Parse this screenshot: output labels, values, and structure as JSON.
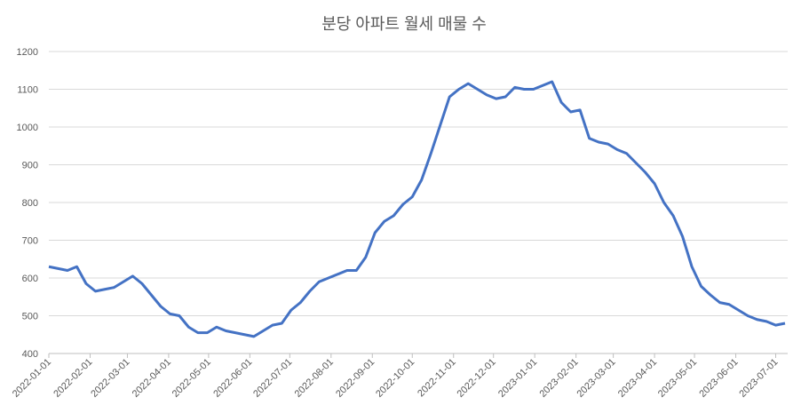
{
  "chart_data": {
    "type": "line",
    "title": "분당 아파트 월세 매물 수",
    "x": [
      "2022-01-01",
      "2022-01-08",
      "2022-01-15",
      "2022-01-22",
      "2022-01-29",
      "2022-02-05",
      "2022-02-12",
      "2022-02-19",
      "2022-02-26",
      "2022-03-05",
      "2022-03-12",
      "2022-03-19",
      "2022-03-26",
      "2022-04-02",
      "2022-04-09",
      "2022-04-16",
      "2022-04-23",
      "2022-04-30",
      "2022-05-07",
      "2022-05-14",
      "2022-05-21",
      "2022-05-28",
      "2022-06-04",
      "2022-06-11",
      "2022-06-18",
      "2022-06-25",
      "2022-07-02",
      "2022-07-09",
      "2022-07-16",
      "2022-07-23",
      "2022-07-30",
      "2022-08-06",
      "2022-08-13",
      "2022-08-20",
      "2022-08-27",
      "2022-09-03",
      "2022-09-10",
      "2022-09-17",
      "2022-09-24",
      "2022-10-01",
      "2022-10-08",
      "2022-10-15",
      "2022-10-22",
      "2022-10-29",
      "2022-11-05",
      "2022-11-12",
      "2022-11-19",
      "2022-11-26",
      "2022-12-03",
      "2022-12-10",
      "2022-12-17",
      "2022-12-24",
      "2022-12-31",
      "2023-01-07",
      "2023-01-14",
      "2023-01-21",
      "2023-01-28",
      "2023-02-04",
      "2023-02-11",
      "2023-02-18",
      "2023-02-25",
      "2023-03-04",
      "2023-03-11",
      "2023-03-18",
      "2023-03-25",
      "2023-04-01",
      "2023-04-08",
      "2023-04-15",
      "2023-04-22",
      "2023-04-29",
      "2023-05-06",
      "2023-05-13",
      "2023-05-20",
      "2023-05-27",
      "2023-06-03",
      "2023-06-10",
      "2023-06-17",
      "2023-06-24",
      "2023-07-01",
      "2023-07-08"
    ],
    "series": [
      {
        "color": "#4472c4",
        "values": [
          630,
          625,
          620,
          630,
          585,
          565,
          570,
          575,
          590,
          605,
          585,
          555,
          525,
          505,
          500,
          470,
          455,
          455,
          470,
          460,
          455,
          450,
          445,
          460,
          475,
          480,
          515,
          535,
          565,
          590,
          600,
          610,
          620,
          620,
          655,
          720,
          750,
          765,
          795,
          815,
          860,
          930,
          1005,
          1080,
          1100,
          1115,
          1100,
          1085,
          1075,
          1080,
          1105,
          1100,
          1100,
          1110,
          1120,
          1065,
          1040,
          1045,
          970,
          960,
          955,
          940,
          930,
          905,
          880,
          850,
          800,
          765,
          710,
          630,
          578,
          555,
          535,
          530,
          515,
          500,
          490,
          485,
          475,
          480
        ]
      }
    ],
    "xlim": [
      "2022-01-01",
      "2023-07-10"
    ],
    "xticks": [
      "2022-01-01",
      "2022-02-01",
      "2022-03-01",
      "2022-04-01",
      "2022-05-01",
      "2022-06-01",
      "2022-07-01",
      "2022-08-01",
      "2022-09-01",
      "2022-10-01",
      "2022-11-01",
      "2022-12-01",
      "2023-01-01",
      "2023-02-01",
      "2023-03-01",
      "2023-04-01",
      "2023-05-01",
      "2023-06-01",
      "2023-07-01"
    ],
    "ylim": [
      400,
      1200
    ],
    "yticks": [
      400,
      500,
      600,
      700,
      800,
      900,
      1000,
      1100,
      1200
    ],
    "grid": true
  }
}
